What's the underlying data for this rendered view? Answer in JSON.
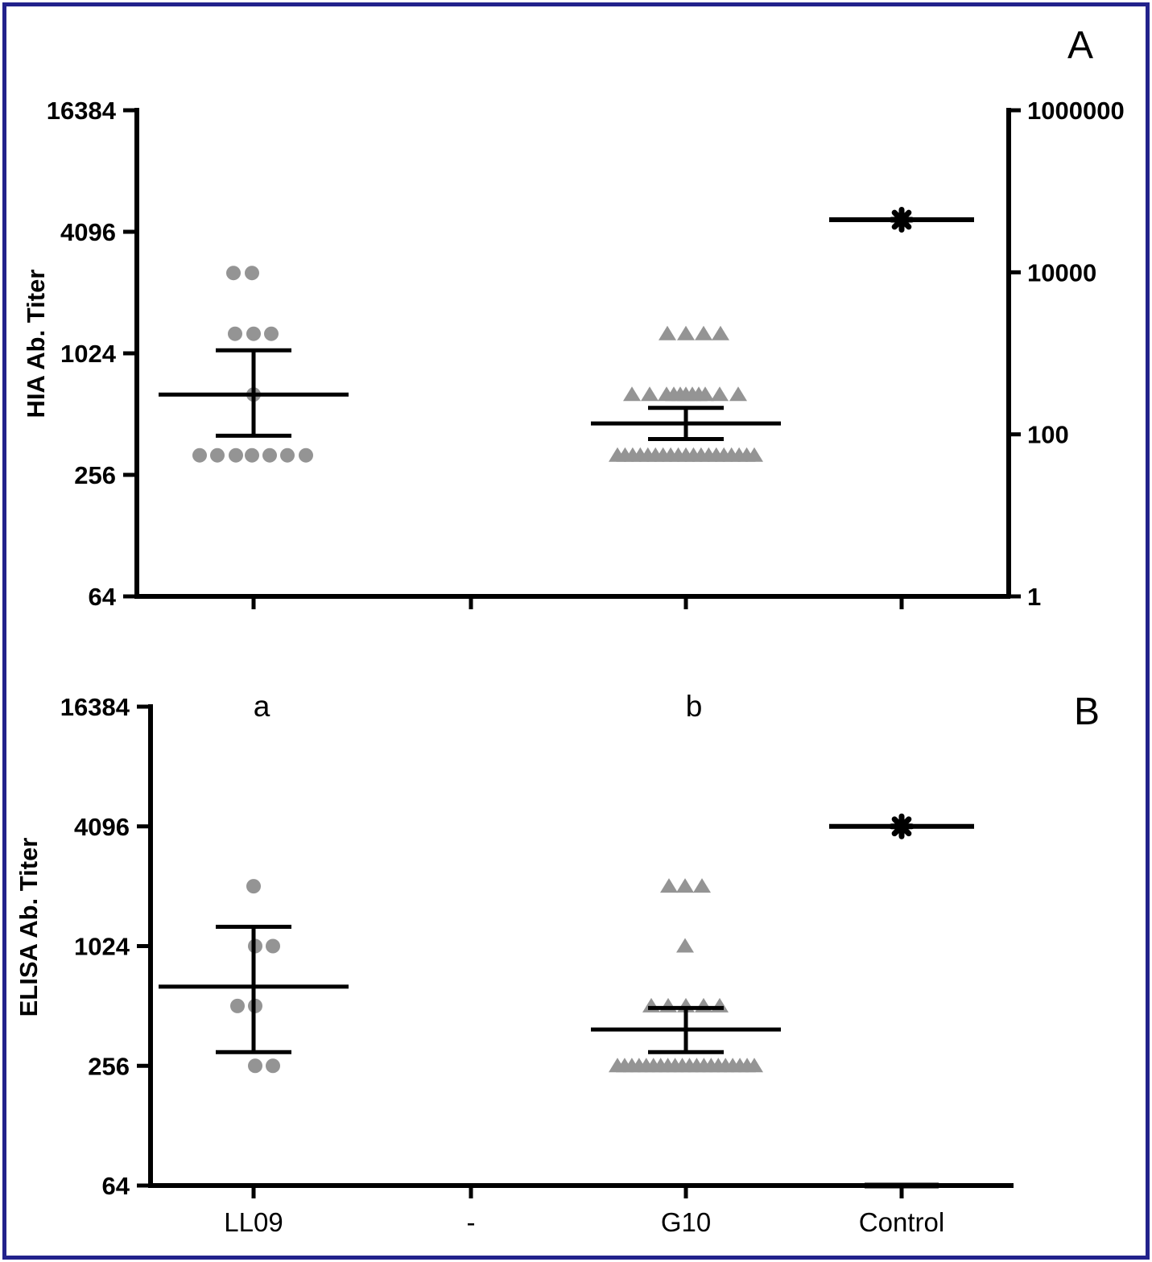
{
  "figure": {
    "panel_a_label": "A",
    "panel_b_label": "B",
    "border_color": "#22228C",
    "marker_color": "#949494",
    "line_color": "#000000"
  },
  "chart_data": [
    {
      "type": "scatter",
      "panel": "A",
      "ylabel": "HIA Ab. Titer",
      "y_scale": "log",
      "y_range": [
        64,
        16384
      ],
      "y_ticks": [
        16384,
        4096,
        1024,
        256,
        64
      ],
      "right_axis_range": [
        1,
        1000000
      ],
      "right_axis_ticks": [
        1000000,
        10000,
        100,
        1
      ],
      "x_categories": [
        "LL09",
        "-",
        "G10",
        "Control"
      ],
      "show_x_labels": false,
      "grid": false,
      "groups": [
        {
          "name": "LL09",
          "marker": "circle",
          "points": [
            [
              2560,
              -25
            ],
            [
              2560,
              -2
            ],
            [
              1280,
              -23
            ],
            [
              1280,
              0
            ],
            [
              1280,
              22
            ],
            [
              640,
              0
            ],
            [
              320,
              -67
            ],
            [
              320,
              -45
            ],
            [
              320,
              -22
            ],
            [
              320,
              -2
            ],
            [
              320,
              20
            ],
            [
              320,
              42
            ],
            [
              320,
              65
            ]
          ],
          "mean": 640,
          "sem_high": 1060,
          "sem_low": 400
        },
        {
          "name": "-",
          "marker": "none",
          "points": []
        },
        {
          "name": "G10",
          "marker": "triangle",
          "points": [
            [
              1280,
              -23
            ],
            [
              1280,
              0
            ],
            [
              1280,
              22
            ],
            [
              1280,
              43
            ],
            [
              640,
              -67
            ],
            [
              640,
              -45
            ],
            [
              640,
              -24
            ],
            [
              640,
              -15
            ],
            [
              640,
              -7
            ],
            [
              640,
              0
            ],
            [
              640,
              8
            ],
            [
              640,
              16
            ],
            [
              640,
              24
            ],
            [
              640,
              42
            ],
            [
              640,
              65
            ],
            [
              320,
              null
            ],
            [
              320,
              null
            ],
            [
              320,
              null
            ],
            [
              320,
              null
            ],
            [
              320,
              null
            ],
            [
              320,
              null
            ],
            [
              320,
              null
            ],
            [
              320,
              null
            ],
            [
              320,
              null
            ],
            [
              320,
              null
            ],
            [
              320,
              null
            ],
            [
              320,
              null
            ],
            [
              320,
              null
            ],
            [
              320,
              null
            ],
            [
              320,
              null
            ],
            [
              320,
              null
            ],
            [
              320,
              null
            ],
            [
              320,
              null
            ],
            [
              320,
              null
            ]
          ],
          "mean": 460,
          "sem_high": 550,
          "sem_low": 385
        },
        {
          "name": "Control",
          "marker": "asterisk",
          "points": [
            [
              4700,
              0
            ]
          ],
          "mean": 4700
        }
      ]
    },
    {
      "type": "scatter",
      "panel": "B",
      "ylabel": "ELISA Ab. Titer",
      "y_scale": "log",
      "y_range": [
        64,
        16384
      ],
      "y_ticks": [
        16384,
        4096,
        1024,
        256,
        64
      ],
      "x_categories": [
        "LL09",
        "-",
        "G10",
        "Control"
      ],
      "show_x_labels": true,
      "grid": false,
      "annotations": [
        {
          "text": "a",
          "group": 0
        },
        {
          "text": "b",
          "group": 2
        }
      ],
      "groups": [
        {
          "name": "LL09",
          "marker": "circle",
          "points": [
            [
              2048,
              0
            ],
            [
              1024,
              2
            ],
            [
              1024,
              24
            ],
            [
              512,
              -20
            ],
            [
              512,
              2
            ],
            [
              256,
              2
            ],
            [
              256,
              24
            ]
          ],
          "mean": 640,
          "sem_high": 1280,
          "sem_low": 300
        },
        {
          "name": "-",
          "marker": "none",
          "points": []
        },
        {
          "name": "G10",
          "marker": "triangle",
          "points": [
            [
              2048,
              -21
            ],
            [
              2048,
              -1
            ],
            [
              2048,
              20
            ],
            [
              1024,
              -1
            ],
            [
              512,
              -43
            ],
            [
              512,
              -22
            ],
            [
              512,
              0
            ],
            [
              512,
              22
            ],
            [
              512,
              42
            ],
            [
              256,
              null
            ],
            [
              256,
              null
            ],
            [
              256,
              null
            ],
            [
              256,
              null
            ],
            [
              256,
              null
            ],
            [
              256,
              null
            ],
            [
              256,
              null
            ],
            [
              256,
              null
            ],
            [
              256,
              null
            ],
            [
              256,
              null
            ],
            [
              256,
              null
            ],
            [
              256,
              null
            ],
            [
              256,
              null
            ],
            [
              256,
              null
            ],
            [
              256,
              null
            ],
            [
              256,
              null
            ],
            [
              256,
              null
            ],
            [
              256,
              null
            ],
            [
              256,
              null
            ],
            [
              256,
              null
            ]
          ],
          "mean": 390,
          "sem_high": 500,
          "sem_low": 300
        },
        {
          "name": "Control",
          "marker": "asterisk",
          "points": [
            [
              4096,
              0
            ]
          ],
          "mean": 4096,
          "floor_line": 64
        }
      ]
    }
  ]
}
